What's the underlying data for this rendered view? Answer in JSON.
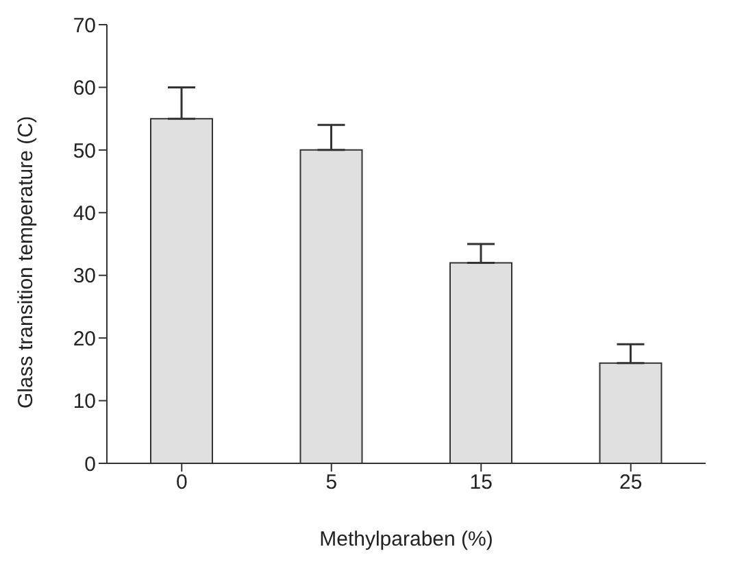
{
  "chart_data": {
    "type": "bar",
    "xlabel": "Methylparaben (%)",
    "ylabel": "Glass transition temperature (C)",
    "categories": [
      "0",
      "5",
      "15",
      "25"
    ],
    "values": [
      55,
      50,
      32,
      16
    ],
    "errors": [
      [
        55,
        60
      ],
      [
        50,
        54
      ],
      [
        32,
        35
      ],
      [
        16,
        19
      ]
    ],
    "color": "#e0e0e0",
    "ylim": [
      0,
      70
    ],
    "yticks": [
      0,
      10,
      20,
      30,
      40,
      50,
      60,
      70
    ],
    "grid": false,
    "legend": false
  }
}
